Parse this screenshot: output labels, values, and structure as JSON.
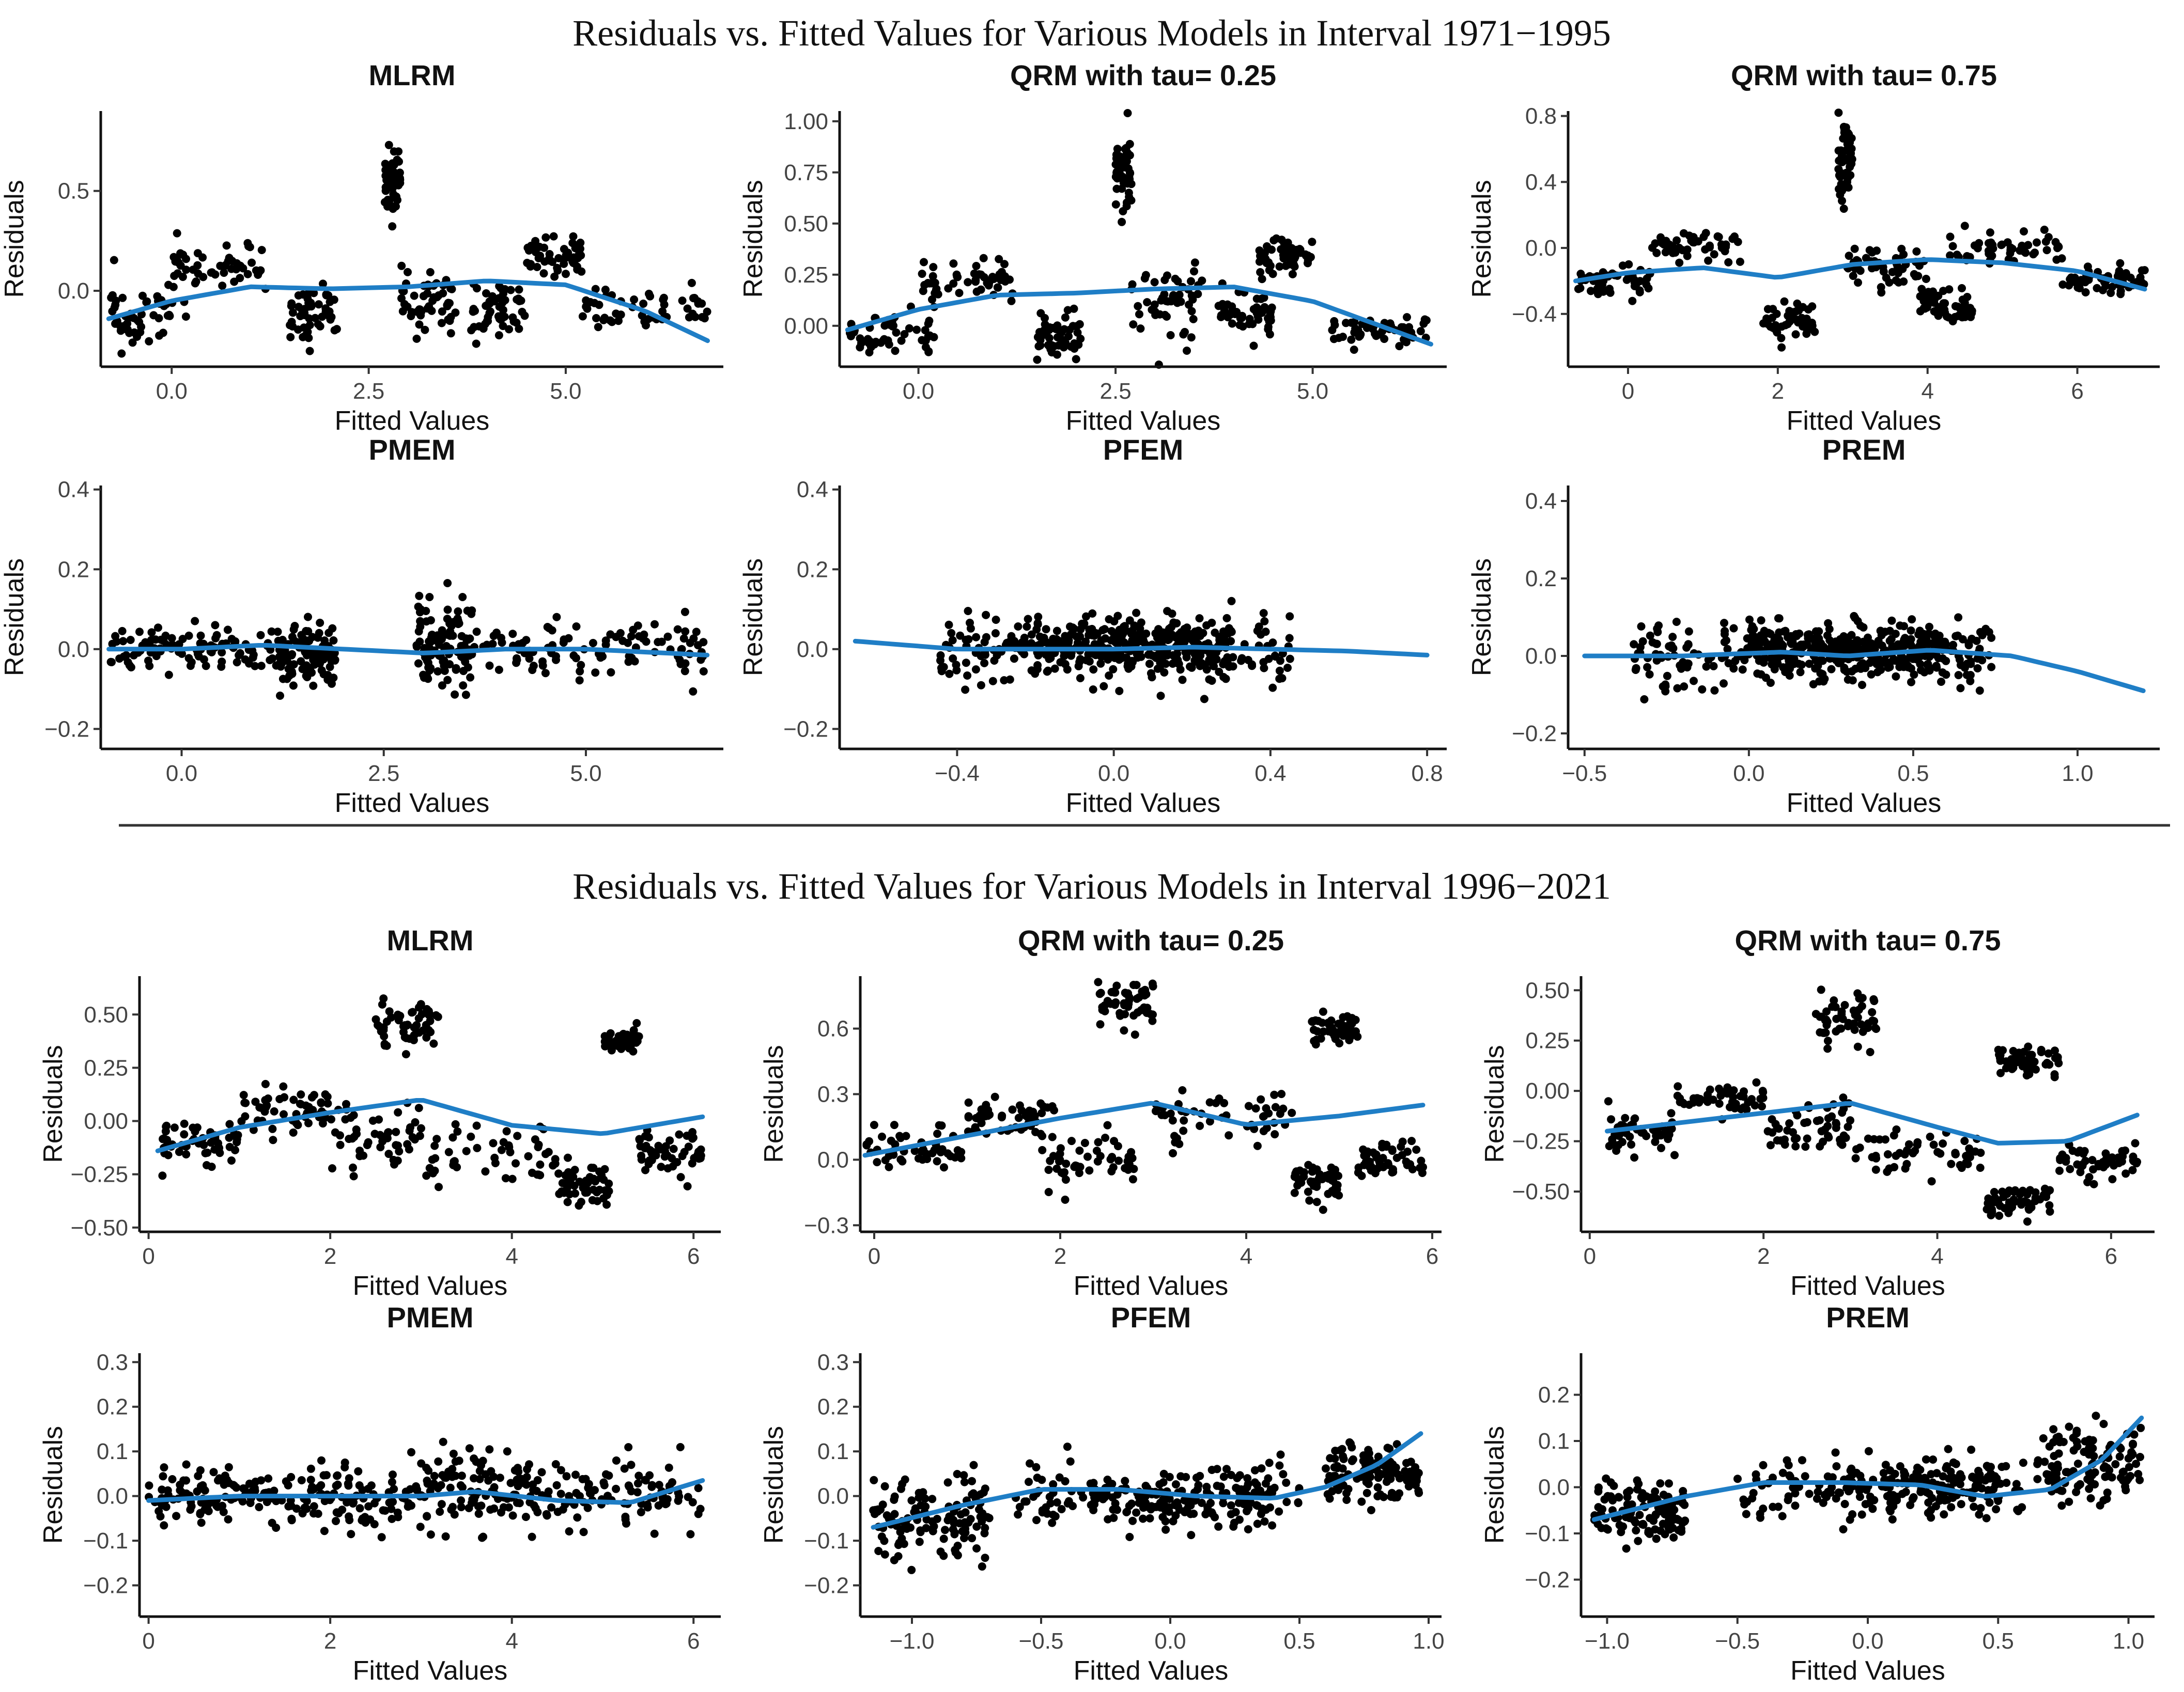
{
  "colors": {
    "points": "#000000",
    "smooth": "#1f7ec6"
  },
  "chart_data": [
    {
      "type": "scatter",
      "section": 0,
      "row": 0,
      "col": 0,
      "title": "MLRM",
      "xlabel": "Fitted Values",
      "ylabel": "Residuals",
      "xlim": [
        -0.9,
        7.0
      ],
      "ylim": [
        -0.38,
        0.9
      ],
      "xticks": [
        0,
        2.5,
        5
      ],
      "xtick_labels": [
        "0.0",
        "2.5",
        "5.0"
      ],
      "yticks": [
        0,
        0.5
      ],
      "ytick_labels": [
        "0.0",
        "0.5"
      ],
      "n_points": 420,
      "seed": 11,
      "smooth": [
        [
          -0.8,
          -0.14
        ],
        [
          0,
          -0.05
        ],
        [
          1,
          0.02
        ],
        [
          2,
          0.01
        ],
        [
          3,
          0.02
        ],
        [
          4,
          0.05
        ],
        [
          5,
          0.03
        ],
        [
          6,
          -0.1
        ],
        [
          6.8,
          -0.25
        ]
      ],
      "clusters": [
        [
          -0.8,
          0.2,
          -0.12,
          0.14
        ],
        [
          0,
          1.2,
          0.12,
          0.1
        ],
        [
          1.5,
          2.1,
          -0.12,
          0.13
        ],
        [
          2.7,
          2.9,
          0.55,
          0.18
        ],
        [
          2.9,
          3.6,
          -0.05,
          0.16
        ],
        [
          3.8,
          4.5,
          -0.1,
          0.13
        ],
        [
          4.5,
          5.2,
          0.18,
          0.1
        ],
        [
          5.2,
          6.8,
          -0.1,
          0.09
        ]
      ]
    },
    {
      "type": "scatter",
      "section": 0,
      "row": 0,
      "col": 1,
      "title": "QRM with tau= 0.25",
      "xlabel": "Fitted Values",
      "ylabel": "Residuals",
      "xlim": [
        -1.0,
        6.7
      ],
      "ylim": [
        -0.2,
        1.05
      ],
      "xticks": [
        0,
        2.5,
        5
      ],
      "xtick_labels": [
        "0.0",
        "2.5",
        "5.0"
      ],
      "yticks": [
        0,
        0.25,
        0.5,
        0.75,
        1.0
      ],
      "ytick_labels": [
        "0.00",
        "0.25",
        "0.50",
        "0.75",
        "1.00"
      ],
      "n_points": 420,
      "seed": 23,
      "smooth": [
        [
          -0.9,
          -0.02
        ],
        [
          0,
          0.08
        ],
        [
          1,
          0.15
        ],
        [
          2,
          0.16
        ],
        [
          3,
          0.18
        ],
        [
          4,
          0.19
        ],
        [
          5,
          0.12
        ],
        [
          6.5,
          -0.09
        ]
      ],
      "clusters": [
        [
          -0.9,
          0.2,
          -0.02,
          0.09
        ],
        [
          0,
          1.2,
          0.22,
          0.08
        ],
        [
          1.5,
          2.1,
          -0.05,
          0.1
        ],
        [
          2.5,
          2.7,
          0.78,
          0.2
        ],
        [
          2.7,
          3.6,
          0.1,
          0.16
        ],
        [
          3.8,
          4.5,
          0.05,
          0.1
        ],
        [
          4.3,
          5.0,
          0.35,
          0.08
        ],
        [
          5.2,
          6.5,
          -0.02,
          0.06
        ]
      ]
    },
    {
      "type": "scatter",
      "section": 0,
      "row": 0,
      "col": 2,
      "title": "QRM with tau= 0.75",
      "xlabel": "Fitted Values",
      "ylabel": "Residuals",
      "xlim": [
        -0.8,
        7.1
      ],
      "ylim": [
        -0.72,
        0.83
      ],
      "xticks": [
        0,
        2,
        4,
        6
      ],
      "xtick_labels": [
        "0",
        "2",
        "4",
        "6"
      ],
      "yticks": [
        -0.4,
        0,
        0.4,
        0.8
      ],
      "ytick_labels": [
        "-0.4",
        "0.0",
        "0.4",
        "0.8"
      ],
      "n_points": 420,
      "seed": 37,
      "smooth": [
        [
          -0.7,
          -0.2
        ],
        [
          0,
          -0.15
        ],
        [
          1,
          -0.12
        ],
        [
          2,
          -0.18
        ],
        [
          3,
          -0.1
        ],
        [
          4,
          -0.07
        ],
        [
          5,
          -0.09
        ],
        [
          6,
          -0.14
        ],
        [
          6.9,
          -0.25
        ]
      ],
      "clusters": [
        [
          -0.7,
          0.3,
          -0.22,
          0.09
        ],
        [
          0.3,
          1.5,
          0.02,
          0.08
        ],
        [
          1.8,
          2.5,
          -0.45,
          0.13
        ],
        [
          2.8,
          3.0,
          0.5,
          0.2
        ],
        [
          2.9,
          4.0,
          -0.12,
          0.13
        ],
        [
          3.9,
          4.6,
          -0.35,
          0.09
        ],
        [
          4.2,
          5.8,
          0.0,
          0.08
        ],
        [
          5.8,
          6.9,
          -0.2,
          0.07
        ]
      ]
    },
    {
      "type": "scatter",
      "section": 0,
      "row": 1,
      "col": 0,
      "title": "PMEM",
      "xlabel": "Fitted Values",
      "ylabel": "Residuals",
      "xlim": [
        -1.0,
        6.7
      ],
      "ylim": [
        -0.25,
        0.41
      ],
      "xticks": [
        0,
        2.5,
        5
      ],
      "xtick_labels": [
        "0.0",
        "2.5",
        "5.0"
      ],
      "yticks": [
        -0.2,
        0,
        0.2,
        0.4
      ],
      "ytick_labels": [
        "-0.2",
        "0.0",
        "0.2",
        "0.4"
      ],
      "n_points": 420,
      "seed": 41,
      "smooth": [
        [
          -0.9,
          0.0
        ],
        [
          0,
          0.0
        ],
        [
          1,
          0.01
        ],
        [
          2,
          0.0
        ],
        [
          3,
          -0.01
        ],
        [
          4,
          0.0
        ],
        [
          5,
          0.0
        ],
        [
          6.5,
          -0.015
        ]
      ],
      "clusters": [
        [
          -0.9,
          1.2,
          0.0,
          0.05
        ],
        [
          1.2,
          1.9,
          -0.02,
          0.07
        ],
        [
          2.9,
          3.6,
          0.0,
          0.12
        ],
        [
          3.6,
          6.5,
          0.0,
          0.06
        ]
      ]
    },
    {
      "type": "scatter",
      "section": 0,
      "row": 1,
      "col": 1,
      "title": "PFEM",
      "xlabel": "Fitted Values",
      "ylabel": "Residuals",
      "xlim": [
        -0.7,
        0.85
      ],
      "ylim": [
        -0.25,
        0.41
      ],
      "xticks": [
        -0.4,
        0,
        0.4,
        0.8
      ],
      "xtick_labels": [
        "-0.4",
        "0.0",
        "0.4",
        "0.8"
      ],
      "yticks": [
        -0.2,
        0,
        0.2,
        0.4
      ],
      "ytick_labels": [
        "-0.2",
        "0.0",
        "0.2",
        "0.4"
      ],
      "n_points": 480,
      "seed": 53,
      "smooth": [
        [
          -0.66,
          0.02
        ],
        [
          -0.4,
          0.0
        ],
        [
          -0.2,
          0.0
        ],
        [
          0,
          0.0
        ],
        [
          0.2,
          0.005
        ],
        [
          0.4,
          0.0
        ],
        [
          0.6,
          -0.005
        ],
        [
          0.8,
          -0.015
        ]
      ],
      "clusters": [
        [
          -0.45,
          0.45,
          0.0,
          0.08
        ],
        [
          -0.2,
          0.3,
          0.01,
          0.06
        ]
      ]
    },
    {
      "type": "scatter",
      "section": 0,
      "row": 1,
      "col": 2,
      "title": "PREM",
      "xlabel": "Fitted Values",
      "ylabel": "Residuals",
      "xlim": [
        -0.55,
        1.25
      ],
      "ylim": [
        -0.24,
        0.44
      ],
      "xticks": [
        -0.5,
        0,
        0.5,
        1.0
      ],
      "xtick_labels": [
        "-0.5",
        "0.0",
        "0.5",
        "1.0"
      ],
      "yticks": [
        -0.2,
        0,
        0.2,
        0.4
      ],
      "ytick_labels": [
        "-0.2",
        "0.0",
        "0.2",
        "0.4"
      ],
      "n_points": 480,
      "seed": 67,
      "smooth": [
        [
          -0.5,
          0.0
        ],
        [
          -0.2,
          0.0
        ],
        [
          0.1,
          0.01
        ],
        [
          0.3,
          0.0
        ],
        [
          0.55,
          0.015
        ],
        [
          0.8,
          0.0
        ],
        [
          1.0,
          -0.04
        ],
        [
          1.2,
          -0.09
        ]
      ],
      "clusters": [
        [
          -0.35,
          0.75,
          0.0,
          0.07
        ],
        [
          0.0,
          0.6,
          0.02,
          0.05
        ]
      ]
    },
    {
      "type": "scatter",
      "section": 1,
      "row": 0,
      "col": 0,
      "title": "MLRM",
      "xlabel": "Fitted Values",
      "ylabel": "Residuals",
      "xlim": [
        -0.1,
        6.3
      ],
      "ylim": [
        -0.52,
        0.68
      ],
      "xticks": [
        0,
        2,
        4,
        6
      ],
      "xtick_labels": [
        "0",
        "2",
        "4",
        "6"
      ],
      "yticks": [
        -0.5,
        -0.25,
        0,
        0.25,
        0.5
      ],
      "ytick_labels": [
        "-0.50",
        "-0.25",
        "0.00",
        "0.25",
        "0.50"
      ],
      "n_points": 420,
      "seed": 71,
      "smooth": [
        [
          0.1,
          -0.14
        ],
        [
          1,
          -0.03
        ],
        [
          2,
          0.04
        ],
        [
          3,
          0.1
        ],
        [
          4,
          -0.02
        ],
        [
          5,
          -0.06
        ],
        [
          6.1,
          0.02
        ]
      ],
      "clusters": [
        [
          0.1,
          1.0,
          -0.1,
          0.11
        ],
        [
          1.0,
          2.0,
          0.05,
          0.1
        ],
        [
          2.0,
          3.0,
          -0.05,
          0.14
        ],
        [
          2.5,
          3.2,
          0.45,
          0.12
        ],
        [
          3.0,
          4.5,
          -0.15,
          0.12
        ],
        [
          4.5,
          5.1,
          -0.3,
          0.08
        ],
        [
          5.0,
          5.4,
          0.38,
          0.06
        ],
        [
          5.4,
          6.1,
          -0.15,
          0.09
        ]
      ]
    },
    {
      "type": "scatter",
      "section": 1,
      "row": 0,
      "col": 1,
      "title": "QRM with tau= 0.25",
      "xlabel": "Fitted Values",
      "ylabel": "Residuals",
      "xlim": [
        -0.15,
        6.1
      ],
      "ylim": [
        -0.33,
        0.84
      ],
      "xticks": [
        0,
        2,
        4,
        6
      ],
      "xtick_labels": [
        "0",
        "2",
        "4",
        "6"
      ],
      "yticks": [
        -0.3,
        0,
        0.3,
        0.6
      ],
      "ytick_labels": [
        "-0.3",
        "0.0",
        "0.3",
        "0.6"
      ],
      "n_points": 420,
      "seed": 83,
      "smooth": [
        [
          -0.1,
          0.02
        ],
        [
          1,
          0.11
        ],
        [
          2,
          0.19
        ],
        [
          3,
          0.26
        ],
        [
          4,
          0.16
        ],
        [
          5,
          0.2
        ],
        [
          5.9,
          0.25
        ]
      ],
      "clusters": [
        [
          -0.1,
          1.0,
          0.05,
          0.08
        ],
        [
          1.0,
          2.0,
          0.2,
          0.08
        ],
        [
          1.8,
          2.8,
          0.0,
          0.1
        ],
        [
          2.4,
          3.0,
          0.72,
          0.09
        ],
        [
          3.0,
          4.5,
          0.2,
          0.12
        ],
        [
          4.5,
          5.0,
          -0.1,
          0.08
        ],
        [
          4.7,
          5.2,
          0.6,
          0.07
        ],
        [
          5.2,
          5.9,
          0.0,
          0.08
        ]
      ]
    },
    {
      "type": "scatter",
      "section": 1,
      "row": 0,
      "col": 2,
      "title": "QRM with tau= 0.75",
      "xlabel": "Fitted Values",
      "ylabel": "Residuals",
      "xlim": [
        -0.1,
        6.5
      ],
      "ylim": [
        -0.7,
        0.57
      ],
      "xticks": [
        0,
        2,
        4,
        6
      ],
      "xtick_labels": [
        "0",
        "2",
        "4",
        "6"
      ],
      "yticks": [
        -0.5,
        -0.25,
        0,
        0.25,
        0.5
      ],
      "ytick_labels": [
        "-0.50",
        "-0.25",
        "0.00",
        "0.25",
        "0.50"
      ],
      "n_points": 420,
      "seed": 97,
      "smooth": [
        [
          0.2,
          -0.2
        ],
        [
          1,
          -0.16
        ],
        [
          2,
          -0.11
        ],
        [
          3,
          -0.06
        ],
        [
          4,
          -0.18
        ],
        [
          4.7,
          -0.26
        ],
        [
          5.5,
          -0.25
        ],
        [
          6.3,
          -0.12
        ]
      ],
      "clusters": [
        [
          0.2,
          1.0,
          -0.22,
          0.1
        ],
        [
          1.0,
          2.0,
          -0.05,
          0.08
        ],
        [
          2.0,
          3.0,
          -0.2,
          0.14
        ],
        [
          2.6,
          3.3,
          0.35,
          0.12
        ],
        [
          3.0,
          4.5,
          -0.3,
          0.12
        ],
        [
          4.5,
          5.3,
          -0.55,
          0.07
        ],
        [
          4.7,
          5.4,
          0.15,
          0.07
        ],
        [
          5.4,
          6.3,
          -0.35,
          0.08
        ]
      ]
    },
    {
      "type": "scatter",
      "section": 1,
      "row": 1,
      "col": 0,
      "title": "PMEM",
      "xlabel": "Fitted Values",
      "ylabel": "Residuals",
      "xlim": [
        -0.1,
        6.3
      ],
      "ylim": [
        -0.27,
        0.32
      ],
      "xticks": [
        0,
        2,
        4,
        6
      ],
      "xtick_labels": [
        "0",
        "2",
        "4",
        "6"
      ],
      "yticks": [
        -0.2,
        -0.1,
        0,
        0.1,
        0.2,
        0.3
      ],
      "ytick_labels": [
        "-0.2",
        "-0.1",
        "0.0",
        "0.1",
        "0.2",
        "0.3"
      ],
      "n_points": 420,
      "seed": 101,
      "smooth": [
        [
          0,
          -0.01
        ],
        [
          1,
          0.0
        ],
        [
          2,
          0.0
        ],
        [
          3,
          0.0
        ],
        [
          3.6,
          0.01
        ],
        [
          4.5,
          -0.01
        ],
        [
          5.3,
          -0.015
        ],
        [
          6.1,
          0.035
        ]
      ],
      "clusters": [
        [
          0,
          1.5,
          0.0,
          0.05
        ],
        [
          1.5,
          3.0,
          0.0,
          0.07
        ],
        [
          3.0,
          4.2,
          0.02,
          0.08
        ],
        [
          4.2,
          6.1,
          0.0,
          0.07
        ]
      ]
    },
    {
      "type": "scatter",
      "section": 1,
      "row": 1,
      "col": 1,
      "title": "PFEM",
      "xlabel": "Fitted Values",
      "ylabel": "Residuals",
      "xlim": [
        -1.2,
        1.05
      ],
      "ylim": [
        -0.27,
        0.32
      ],
      "xticks": [
        -1.0,
        -0.5,
        0,
        0.5,
        1.0
      ],
      "xtick_labels": [
        "-1.0",
        "-0.5",
        "0.0",
        "0.5",
        "1.0"
      ],
      "yticks": [
        -0.2,
        -0.1,
        0,
        0.1,
        0.2,
        0.3
      ],
      "ytick_labels": [
        "-0.2",
        "-0.1",
        "0.0",
        "0.1",
        "0.2",
        "0.3"
      ],
      "n_points": 480,
      "seed": 113,
      "smooth": [
        [
          -1.15,
          -0.07
        ],
        [
          -0.8,
          -0.02
        ],
        [
          -0.5,
          0.015
        ],
        [
          -0.2,
          0.015
        ],
        [
          0.1,
          0.0
        ],
        [
          0.4,
          -0.005
        ],
        [
          0.6,
          0.02
        ],
        [
          0.8,
          0.07
        ],
        [
          0.97,
          0.14
        ]
      ],
      "clusters": [
        [
          -0.6,
          0.5,
          0.0,
          0.07
        ],
        [
          -0.3,
          0.4,
          -0.01,
          0.05
        ],
        [
          -1.15,
          -0.7,
          -0.05,
          0.09
        ],
        [
          0.6,
          0.97,
          0.05,
          0.06
        ]
      ]
    },
    {
      "type": "scatter",
      "section": 1,
      "row": 1,
      "col": 2,
      "title": "PREM",
      "xlabel": "Fitted Values",
      "ylabel": "Residuals",
      "xlim": [
        -1.1,
        1.1
      ],
      "ylim": [
        -0.28,
        0.29
      ],
      "xticks": [
        -1.0,
        -0.5,
        0,
        0.5,
        1.0
      ],
      "xtick_labels": [
        "-1.0",
        "-0.5",
        "0.0",
        "0.5",
        "1.0"
      ],
      "yticks": [
        -0.2,
        -0.1,
        0,
        0.1,
        0.2
      ],
      "ytick_labels": [
        "-0.2",
        "-0.1",
        "0.0",
        "0.1",
        "0.2"
      ],
      "n_points": 480,
      "seed": 127,
      "smooth": [
        [
          -1.05,
          -0.07
        ],
        [
          -0.7,
          -0.02
        ],
        [
          -0.4,
          0.01
        ],
        [
          -0.1,
          0.01
        ],
        [
          0.2,
          0.005
        ],
        [
          0.45,
          -0.02
        ],
        [
          0.7,
          -0.005
        ],
        [
          0.9,
          0.06
        ],
        [
          1.05,
          0.15
        ]
      ],
      "clusters": [
        [
          -0.5,
          0.6,
          0.0,
          0.07
        ],
        [
          -0.1,
          0.5,
          0.0,
          0.05
        ],
        [
          -1.05,
          -0.7,
          -0.05,
          0.06
        ],
        [
          0.65,
          1.05,
          0.05,
          0.07
        ]
      ]
    }
  ],
  "sections": [
    {
      "title": "Residuals vs. Fitted Values for Various Models in Interval 1971−1995"
    },
    {
      "title": "Residuals vs. Fitted Values for Various Models in Interval 1996−2021"
    }
  ]
}
